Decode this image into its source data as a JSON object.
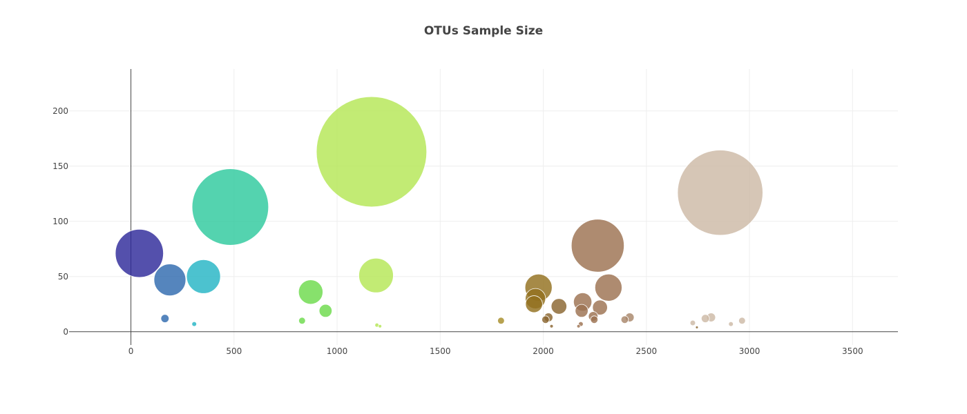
{
  "chart_data": {
    "type": "scatter",
    "title": "OTUs Sample Size",
    "xlabel": "",
    "ylabel": "",
    "xlim": [
      -300,
      3720
    ],
    "ylim": [
      -12,
      238
    ],
    "x_ticks": [
      0,
      500,
      1000,
      1500,
      2000,
      2500,
      3000,
      3500
    ],
    "y_ticks": [
      0,
      50,
      100,
      150,
      200
    ],
    "grid": true,
    "legend": "none",
    "colorscale": "earth",
    "points": [
      {
        "x": 41,
        "y": 71,
        "size": 71,
        "color": "#2e2a9a"
      },
      {
        "x": 189,
        "y": 47,
        "size": 47,
        "color": "#2f6aae"
      },
      {
        "x": 165,
        "y": 12,
        "size": 12,
        "color": "#2f6aae"
      },
      {
        "x": 352,
        "y": 50,
        "size": 50,
        "color": "#25b4c4"
      },
      {
        "x": 307,
        "y": 7,
        "size": 7,
        "color": "#25b4c4"
      },
      {
        "x": 482,
        "y": 113,
        "size": 113,
        "color": "#2ec99e"
      },
      {
        "x": 872,
        "y": 36,
        "size": 36,
        "color": "#6cdb4c"
      },
      {
        "x": 944,
        "y": 19,
        "size": 19,
        "color": "#6cdb4c"
      },
      {
        "x": 830,
        "y": 10,
        "size": 10,
        "color": "#6cdb4c"
      },
      {
        "x": 1167,
        "y": 163,
        "size": 163,
        "color": "#b5e655"
      },
      {
        "x": 1189,
        "y": 51,
        "size": 51,
        "color": "#b5e655"
      },
      {
        "x": 1193,
        "y": 6,
        "size": 6,
        "color": "#b5e655"
      },
      {
        "x": 1208,
        "y": 5,
        "size": 5,
        "color": "#b5e655"
      },
      {
        "x": 1795,
        "y": 10,
        "size": 10,
        "color": "#a78e2a"
      },
      {
        "x": 1977,
        "y": 40,
        "size": 40,
        "color": "#92701e"
      },
      {
        "x": 1962,
        "y": 30,
        "size": 30,
        "color": "#92701e"
      },
      {
        "x": 1955,
        "y": 25,
        "size": 25,
        "color": "#92701e"
      },
      {
        "x": 2076,
        "y": 23,
        "size": 23,
        "color": "#8a6530"
      },
      {
        "x": 2011,
        "y": 11,
        "size": 11,
        "color": "#8a6530"
      },
      {
        "x": 2025,
        "y": 13,
        "size": 13,
        "color": "#8a6530"
      },
      {
        "x": 2040,
        "y": 5,
        "size": 5,
        "color": "#8a6530"
      },
      {
        "x": 2264,
        "y": 78,
        "size": 78,
        "color": "#9c7150"
      },
      {
        "x": 2316,
        "y": 40,
        "size": 40,
        "color": "#9c7150"
      },
      {
        "x": 2191,
        "y": 27,
        "size": 27,
        "color": "#9c7150"
      },
      {
        "x": 2186,
        "y": 19,
        "size": 19,
        "color": "#9c7150"
      },
      {
        "x": 2275,
        "y": 22,
        "size": 22,
        "color": "#9c7150"
      },
      {
        "x": 2242,
        "y": 14,
        "size": 14,
        "color": "#9c7150"
      },
      {
        "x": 2247,
        "y": 11,
        "size": 11,
        "color": "#9c7150"
      },
      {
        "x": 2182,
        "y": 7,
        "size": 7,
        "color": "#9c7150"
      },
      {
        "x": 2171,
        "y": 5,
        "size": 5,
        "color": "#9c7150"
      },
      {
        "x": 2395,
        "y": 11,
        "size": 11,
        "color": "#a8866a"
      },
      {
        "x": 2419,
        "y": 13,
        "size": 13,
        "color": "#a8866a"
      },
      {
        "x": 2858,
        "y": 126,
        "size": 126,
        "color": "#cdb9a6"
      },
      {
        "x": 2725,
        "y": 8,
        "size": 8,
        "color": "#cdb9a6"
      },
      {
        "x": 2786,
        "y": 12,
        "size": 12,
        "color": "#cdb9a6"
      },
      {
        "x": 2814,
        "y": 13,
        "size": 13,
        "color": "#cdb9a6"
      },
      {
        "x": 2910,
        "y": 7,
        "size": 7,
        "color": "#cdb9a6"
      },
      {
        "x": 2964,
        "y": 10,
        "size": 10,
        "color": "#cdb9a6"
      },
      {
        "x": 2745,
        "y": 4,
        "size": 4,
        "color": "#8a6530"
      }
    ]
  }
}
